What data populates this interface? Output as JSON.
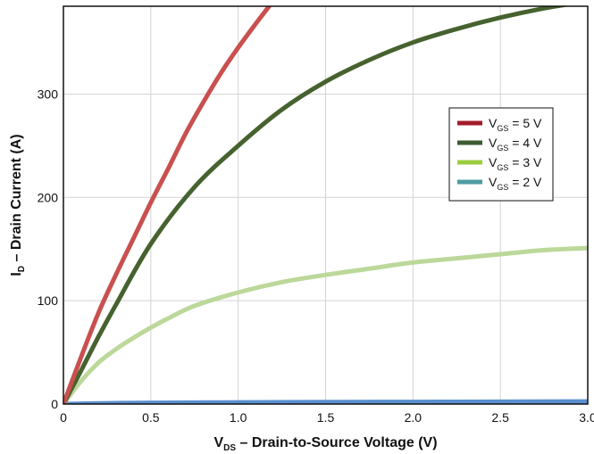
{
  "chart_data": {
    "type": "line",
    "xlabel": {
      "main": "V",
      "sub": "DS",
      "rest": " – Drain-to-Source Voltage (V)"
    },
    "ylabel": {
      "main": "I",
      "sub": "D",
      "rest": " – Drain Current (A)"
    },
    "xlim": [
      0,
      3.0
    ],
    "ylim": [
      0,
      385
    ],
    "x_ticks": [
      "0",
      "0.5",
      "1.0",
      "1.5",
      "2.0",
      "2.5",
      "3.0"
    ],
    "y_ticks": [
      "0",
      "100",
      "200",
      "300"
    ],
    "grid": true,
    "legend_position": "top-right",
    "series": [
      {
        "label": {
          "main": "V",
          "sub": "GS",
          "rest": " = 5 V"
        },
        "legend_color": "#a11d2b",
        "line_color": "#c9504f",
        "x": [
          0,
          0.1,
          0.2,
          0.3,
          0.4,
          0.5,
          0.6,
          0.7,
          0.8,
          0.9,
          1.0,
          1.1,
          1.2
        ],
        "y": [
          0,
          45,
          88,
          125,
          160,
          195,
          228,
          262,
          292,
          320,
          345,
          368,
          390
        ]
      },
      {
        "label": {
          "main": "V",
          "sub": "GS",
          "rest": " = 4 V"
        },
        "legend_color": "#3d5a33",
        "line_color": "#46622f",
        "x": [
          0,
          0.1,
          0.2,
          0.3,
          0.5,
          0.75,
          1.0,
          1.25,
          1.5,
          1.75,
          2.0,
          2.25,
          2.5,
          2.75,
          3.0
        ],
        "y": [
          0,
          32,
          65,
          96,
          155,
          210,
          250,
          285,
          312,
          333,
          350,
          363,
          374,
          383,
          390
        ]
      },
      {
        "label": {
          "main": "V",
          "sub": "GS",
          "rest": " = 3 V"
        },
        "legend_color": "#9ccd3e",
        "line_color": "#bcd89a",
        "x": [
          0,
          0.1,
          0.2,
          0.3,
          0.4,
          0.5,
          0.6,
          0.75,
          1.0,
          1.25,
          1.5,
          1.75,
          2.0,
          2.25,
          2.5,
          2.75,
          3.0
        ],
        "y": [
          0,
          22,
          40,
          53,
          64,
          74,
          83,
          95,
          108,
          118,
          125,
          131,
          137,
          141,
          145,
          149,
          151
        ]
      },
      {
        "label": {
          "main": "V",
          "sub": "GS",
          "rest": " = 2 V"
        },
        "legend_color": "#4f9ba3",
        "line_color": "#5a8fd0",
        "x": [
          0,
          0.25,
          0.5,
          1.0,
          1.5,
          2.0,
          2.5,
          3.0
        ],
        "y": [
          0,
          0.8,
          1.2,
          1.6,
          1.9,
          2.1,
          2.3,
          2.5
        ]
      }
    ]
  }
}
